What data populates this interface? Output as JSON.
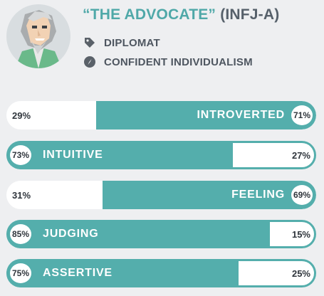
{
  "header": {
    "nickname": "“THE ADVOCATE”",
    "type_code": "(INFJ-A)",
    "role": "DIPLOMAT",
    "strategy": "CONFIDENT INDIVIDUALISM"
  },
  "icons": {
    "role": "tag-icon",
    "strategy": "compass-icon",
    "avatar": "advocate-avatar"
  },
  "colors": {
    "accent": "#54aeac",
    "title": "#4fa8a8",
    "text": "#4e5660",
    "bar_bg": "#ffffff",
    "page_bg": "#eeeff1"
  },
  "traits": [
    {
      "label": "INTROVERTED",
      "left_pct": "29%",
      "right_pct": "71%",
      "dominant": "right",
      "dominant_fraction": 0.71
    },
    {
      "label": "INTUITIVE",
      "left_pct": "73%",
      "right_pct": "27%",
      "dominant": "left",
      "dominant_fraction": 0.73
    },
    {
      "label": "FEELING",
      "left_pct": "31%",
      "right_pct": "69%",
      "dominant": "right",
      "dominant_fraction": 0.69
    },
    {
      "label": "JUDGING",
      "left_pct": "85%",
      "right_pct": "15%",
      "dominant": "left",
      "dominant_fraction": 0.85
    },
    {
      "label": "ASSERTIVE",
      "left_pct": "75%",
      "right_pct": "25%",
      "dominant": "left",
      "dominant_fraction": 0.75
    }
  ]
}
